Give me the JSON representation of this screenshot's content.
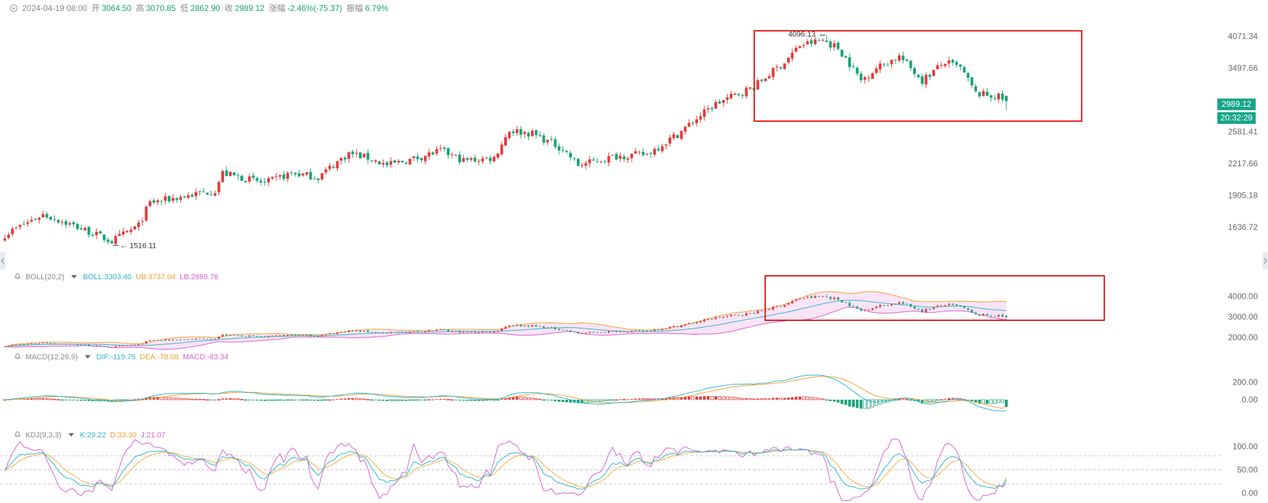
{
  "header": {
    "date": "2024-04-19 08:00",
    "open_label": "开",
    "open": "3064.50",
    "high_label": "高",
    "high": "3070.85",
    "low_label": "低",
    "low": "2862.90",
    "close_label": "收",
    "close": "2989.12",
    "change_label": "涨幅",
    "change": "-2.46%(-75.37)",
    "amplitude_label": "振幅",
    "amplitude": "6.79%"
  },
  "price_tag": {
    "price": "2989.12",
    "countdown": "20:32:29"
  },
  "indicators": {
    "boll": {
      "name": "BOLL(20,2)",
      "mid": "BOLL:3303.40",
      "ub": "UB:3737.04",
      "lb": "LB:2869.76"
    },
    "macd": {
      "name": "MACD(12,26,9)",
      "dif": "DIF:-119.75",
      "dea": "DEA:-78.08",
      "macd": "MACD:-83.34"
    },
    "kdj": {
      "name": "KDJ(9,3,3)",
      "k": "K:29.22",
      "d": "D:33.30",
      "j": "J:21.07"
    }
  },
  "colors": {
    "up": "#e23c3c",
    "down": "#1aa27a",
    "boll_mid": "#2bb5c8",
    "boll_ub": "#f0a030",
    "boll_lb": "#d35fd0",
    "k": "#2bb5c8",
    "d": "#f0b040",
    "j": "#d35fd0",
    "highlight_box": "#e02020",
    "tag": "#17a589"
  },
  "chart_data": [
    {
      "type": "candlestick",
      "panel": "price",
      "y_ticks": [
        4071.34,
        3497.66,
        2581.41,
        2217.66,
        1905.18,
        1636.72
      ],
      "y_tick_labels": [
        "4071.34",
        "3497.66",
        "2581.41",
        "2217.66",
        "1905.18",
        "1636.72"
      ],
      "ylim": [
        1400,
        4250
      ],
      "y_scale": "log",
      "annotations": [
        {
          "text": "4096.13",
          "value": 4096.13,
          "type": "max"
        },
        {
          "text": "1516.11",
          "value": 1516.11,
          "type": "min"
        }
      ],
      "last": {
        "open": 3064.5,
        "high": 3070.85,
        "low": 2862.9,
        "close": 2989.12
      },
      "waypoints": [
        {
          "bar": 0,
          "price": 1580
        },
        {
          "bar": 10,
          "price": 1740
        },
        {
          "bar": 18,
          "price": 1650
        },
        {
          "bar": 28,
          "price": 1530
        },
        {
          "bar": 35,
          "price": 1650
        },
        {
          "bar": 38,
          "price": 1840
        },
        {
          "bar": 55,
          "price": 1950
        },
        {
          "bar": 57,
          "price": 2120
        },
        {
          "bar": 68,
          "price": 2020
        },
        {
          "bar": 75,
          "price": 2120
        },
        {
          "bar": 82,
          "price": 2080
        },
        {
          "bar": 90,
          "price": 2330
        },
        {
          "bar": 95,
          "price": 2280
        },
        {
          "bar": 100,
          "price": 2200
        },
        {
          "bar": 108,
          "price": 2280
        },
        {
          "bar": 114,
          "price": 2360
        },
        {
          "bar": 120,
          "price": 2250
        },
        {
          "bar": 128,
          "price": 2280
        },
        {
          "bar": 132,
          "price": 2600
        },
        {
          "bar": 138,
          "price": 2560
        },
        {
          "bar": 146,
          "price": 2380
        },
        {
          "bar": 150,
          "price": 2200
        },
        {
          "bar": 160,
          "price": 2300
        },
        {
          "bar": 168,
          "price": 2320
        },
        {
          "bar": 176,
          "price": 2550
        },
        {
          "bar": 186,
          "price": 2950
        },
        {
          "bar": 196,
          "price": 3200
        },
        {
          "bar": 204,
          "price": 3600
        },
        {
          "bar": 208,
          "price": 3900
        },
        {
          "bar": 214,
          "price": 4000
        },
        {
          "bar": 218,
          "price": 3850
        },
        {
          "bar": 224,
          "price": 3300
        },
        {
          "bar": 228,
          "price": 3500
        },
        {
          "bar": 234,
          "price": 3700
        },
        {
          "bar": 240,
          "price": 3300
        },
        {
          "bar": 246,
          "price": 3600
        },
        {
          "bar": 250,
          "price": 3500
        },
        {
          "bar": 254,
          "price": 3100
        },
        {
          "bar": 260,
          "price": 3050
        },
        {
          "bar": 262,
          "price": 2989
        }
      ]
    },
    {
      "type": "line",
      "panel": "BOLL(20,2)",
      "y_ticks": [
        4000,
        3000,
        2000
      ],
      "y_tick_labels": [
        "4000.00",
        "3000.00",
        "2000.00"
      ],
      "ylim": [
        1500,
        4700
      ],
      "last": {
        "mid": 3303.4,
        "ub": 3737.04,
        "lb": 2869.76
      }
    },
    {
      "type": "bar",
      "panel": "MACD(12,26,9)",
      "y_ticks": [
        200,
        0
      ],
      "y_tick_labels": [
        "200.00",
        "0.00"
      ],
      "ylim": [
        -280,
        420
      ],
      "last": {
        "dif": -119.75,
        "dea": -78.08,
        "macd": -83.34
      }
    },
    {
      "type": "line",
      "panel": "KDJ(9,3,3)",
      "y_ticks": [
        100,
        50,
        0
      ],
      "y_tick_labels": [
        "100.00",
        "50.00",
        "0.00"
      ],
      "ylim": [
        -18,
        118
      ],
      "dashed_levels": [
        80,
        50,
        20
      ],
      "last": {
        "k": 29.22,
        "d": 33.3,
        "j": 21.07
      }
    }
  ]
}
